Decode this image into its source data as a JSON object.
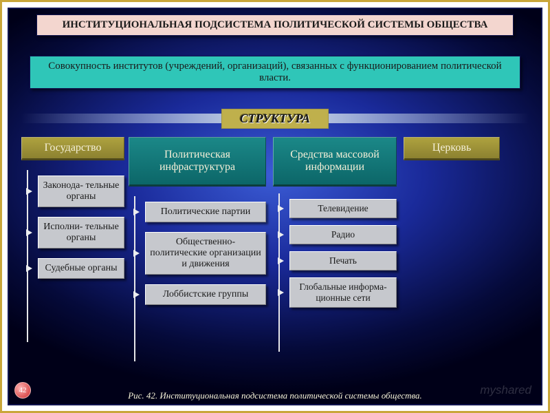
{
  "colors": {
    "outer_border": "#c9a63a",
    "frame_border": "#11144f",
    "bg_center": "#3b5cd6",
    "bg_mid": "#1a2a9a",
    "bg_outer": "#050a3a",
    "title_bg": "#f3d6cf",
    "subtitle_bg": "#2fc6b8",
    "struct_bg": "#bfb04c",
    "box_bg": "#c6c8cd",
    "col_head_text": "#f5f0d8",
    "text_dark": "#1a1a1a"
  },
  "title": "ИНСТИТУЦИОНАЛЬНАЯ ПОДСИСТЕМА ПОЛИТИЧЕСКОЙ СИСТЕМЫ ОБЩЕСТВА",
  "subtitle": "Совокупность институтов (учреждений, организаций), связанных с функционированием политической власти.",
  "structure_label": "СТРУКТУРА",
  "columns": [
    {
      "header": "Государство",
      "header_style": "olive",
      "children": [
        "Законода-\nтельные органы",
        "Исполни-\nтельные органы",
        "Судебные органы"
      ],
      "vline_height": 250
    },
    {
      "header": "Политическая инфраструктура",
      "header_style": "teal",
      "children": [
        "Политические партии",
        "Общественно-\nполитические организации и движения",
        "Лоббистские группы"
      ],
      "vline_height": 240
    },
    {
      "header": "Средства массовой информации",
      "header_style": "teal",
      "children": [
        "Телевидение",
        "Радио",
        "Печать",
        "Глобальные информа-\nционные сети"
      ],
      "vline_height": 230
    },
    {
      "header": "Церковь",
      "header_style": "olive",
      "children": []
    }
  ],
  "caption": "Рис. 42. Институциональная подсистема политической системы общества.",
  "page_number": "42",
  "watermark": "myshared"
}
